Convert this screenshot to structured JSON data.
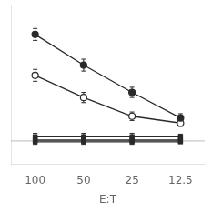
{
  "chart_data": {
    "type": "line",
    "xlabel": "E:T",
    "categories": [
      "100",
      "50",
      "25",
      "12.5"
    ],
    "series": [
      {
        "values": [
          68,
          50,
          34,
          19
        ],
        "yerr": [
          3.5,
          3.5,
          3,
          2.5
        ],
        "color": "#2a2a2a",
        "marker": "circle"
      },
      {
        "values": [
          44,
          31,
          20,
          16
        ],
        "yerr": [
          3.5,
          3,
          2.5,
          2
        ],
        "color": "#2a2a2a",
        "marker": "open circle"
      },
      {
        "values": [
          8,
          8,
          8,
          8
        ],
        "yerr": [
          2,
          2,
          2,
          1.5
        ],
        "color": "#2a2a2a",
        "marker": "square"
      },
      {
        "values": [
          6,
          6,
          6,
          6
        ],
        "yerr": [
          1.5,
          1.5,
          1.5,
          1.5
        ],
        "color": "#2a2a2a",
        "marker": "square"
      },
      {
        "values": [
          5,
          5,
          5,
          5
        ],
        "yerr": [
          1.5,
          1.5,
          1.5,
          1
        ],
        "color": "#2a2a2a",
        "marker": "square"
      }
    ],
    "ylim": [
      -8,
      85
    ],
    "yticks": [],
    "grid": false,
    "tick_labels": "x",
    "hline": {
      "y": 5.5,
      "color": "#aaaaaa"
    }
  }
}
